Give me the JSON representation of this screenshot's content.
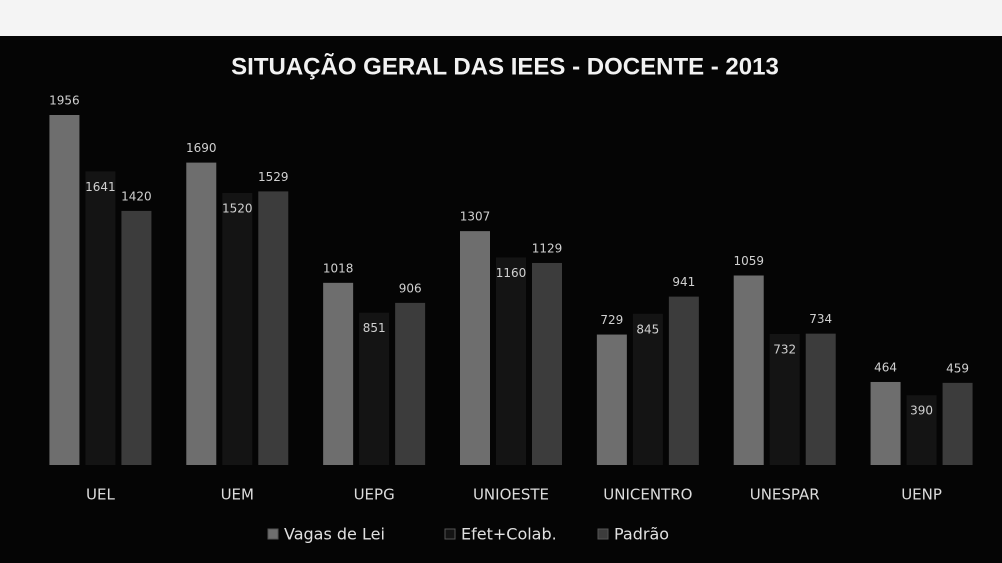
{
  "chart_data": {
    "type": "bar",
    "title": "SITUAÇÃO GERAL DAS IEES - DOCENTE - 2013",
    "categories": [
      "UEL",
      "UEM",
      "UEPG",
      "UNIOESTE",
      "UNICENTRO",
      "UNESPAR",
      "UENP"
    ],
    "series": [
      {
        "name": "Vagas de Lei",
        "color": "#6e6e6e",
        "values": [
          1956,
          1690,
          1018,
          1307,
          729,
          1059,
          464
        ]
      },
      {
        "name": "Efet+Colab.",
        "color": "#141414",
        "values": [
          1641,
          1520,
          851,
          1160,
          845,
          732,
          390
        ]
      },
      {
        "name": "Padrão",
        "color": "#3c3c3c",
        "values": [
          1420,
          1529,
          906,
          1129,
          941,
          734,
          459
        ]
      }
    ],
    "legend": "bottom"
  }
}
